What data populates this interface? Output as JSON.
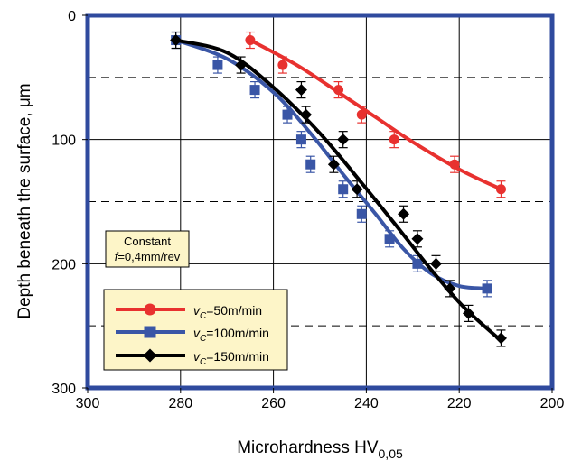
{
  "chart_data": {
    "type": "line",
    "title": "",
    "xlabel_main": "Microhardness HV",
    "xlabel_sub": "0,05",
    "ylabel": "Depth beneath the surface, μm",
    "xlim": [
      300,
      200
    ],
    "ylim": [
      0,
      300
    ],
    "x_reversed": true,
    "y_reversed": true,
    "x_ticks": [
      "300",
      "280",
      "260",
      "240",
      "220",
      "200"
    ],
    "y_ticks": [
      "0",
      "100",
      "200",
      "300"
    ],
    "grid": "vertical every 20 HV; horizontal solid at 100 and 200 μm, dashed at 50, 150 and 250 μm",
    "legend_position": "lower-left",
    "annotation": {
      "line1": "Constant",
      "line2_italic": "f",
      "line2_rest": "=0,4mm/rev"
    },
    "series": [
      {
        "name_italic": "v",
        "name_sub": "C",
        "name_rest": "=50m/min",
        "color": "#e8312f",
        "marker": "circle",
        "x": [
          265,
          258,
          246,
          241,
          234,
          221,
          211
        ],
        "y": [
          20,
          40,
          60,
          80,
          100,
          120,
          140
        ],
        "curve_x": [
          265,
          255,
          246,
          238,
          230,
          220,
          211
        ],
        "curve_y": [
          20,
          40,
          62,
          82,
          102,
          124,
          140
        ]
      },
      {
        "name_italic": "v",
        "name_sub": "C",
        "name_rest": "=100m/min",
        "color": "#3a56a6",
        "marker": "square",
        "x": [
          281,
          272,
          264,
          257,
          254,
          252,
          245,
          241,
          235,
          229,
          214
        ],
        "y": [
          20,
          40,
          60,
          80,
          100,
          120,
          140,
          160,
          180,
          200,
          220
        ],
        "curve_x": [
          281,
          270,
          260,
          252,
          245,
          238,
          232,
          226,
          220,
          214
        ],
        "curve_y": [
          20,
          35,
          62,
          95,
          128,
          160,
          188,
          208,
          218,
          220
        ]
      },
      {
        "name_italic": "v",
        "name_sub": "C",
        "name_rest": "=150m/min",
        "color": "#000000",
        "marker": "diamond",
        "x": [
          281,
          267,
          254,
          253,
          247,
          245,
          242,
          232,
          229,
          225,
          222,
          218,
          211
        ],
        "y": [
          20,
          40,
          60,
          80,
          120,
          100,
          140,
          160,
          180,
          200,
          220,
          240,
          260
        ],
        "curve_x": [
          281,
          270,
          260,
          250,
          241,
          233,
          226,
          219,
          211
        ],
        "curve_y": [
          20,
          30,
          58,
          95,
          135,
          172,
          205,
          235,
          262
        ]
      }
    ]
  }
}
